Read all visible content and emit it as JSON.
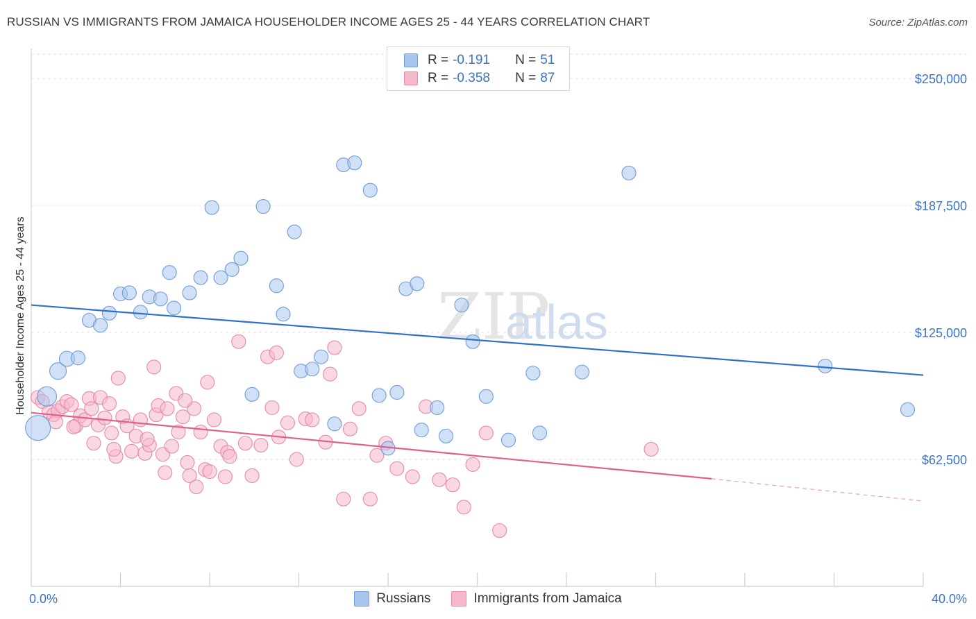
{
  "title": "RUSSIAN VS IMMIGRANTS FROM JAMAICA HOUSEHOLDER INCOME AGES 25 - 44 YEARS CORRELATION CHART",
  "source": "Source: ZipAtlas.com",
  "watermark": {
    "zip": "ZIP",
    "atlas": "atlas"
  },
  "legend": {
    "rows": [
      {
        "r_label": "R =",
        "r_value": "-0.191",
        "n_label": "N =",
        "n_value": "51"
      },
      {
        "r_label": "R =",
        "r_value": "-0.358",
        "n_label": "N =",
        "n_value": "87"
      }
    ]
  },
  "chart_data": {
    "type": "scatter",
    "ylabel": "Householder Income Ages 25 - 44 years",
    "xlim": [
      0,
      40
    ],
    "ylim": [
      0,
      262000
    ],
    "x_tick_labels": [
      "0.0%",
      "40.0%"
    ],
    "y_ticks": [
      {
        "value": 62500,
        "label": "$62,500"
      },
      {
        "value": 125000,
        "label": "$125,000"
      },
      {
        "value": 187500,
        "label": "$187,500"
      },
      {
        "value": 250000,
        "label": "$250,000"
      }
    ],
    "colors": {
      "russians_fill": "#a9c6ee",
      "russians_stroke": "#6f9bd8",
      "russians_line": "#2e6fcc",
      "jamaica_fill": "#f5b8cc",
      "jamaica_stroke": "#e58aa8",
      "jamaica_line": "#e0608c"
    },
    "series": [
      {
        "name": "Russians",
        "trend": {
          "x0": 0,
          "y0": 138500,
          "x1": 40,
          "y1": 104000
        },
        "points": [
          [
            0.3,
            78000,
            1.8
          ],
          [
            0.7,
            93500,
            1.4
          ],
          [
            1.2,
            106000,
            1.2
          ],
          [
            1.6,
            112000,
            1.1
          ],
          [
            2.1,
            112500,
            1.0
          ],
          [
            2.6,
            131000,
            1.0
          ],
          [
            3.1,
            128500,
            1.0
          ],
          [
            3.5,
            134500,
            1.0
          ],
          [
            4.0,
            144000,
            1.0
          ],
          [
            4.4,
            144500,
            1.0
          ],
          [
            4.9,
            135000,
            1.0
          ],
          [
            5.3,
            142500,
            1.0
          ],
          [
            5.8,
            141500,
            1.0
          ],
          [
            6.2,
            154500,
            1.0
          ],
          [
            6.4,
            137000,
            1.0
          ],
          [
            7.1,
            144500,
            1.0
          ],
          [
            7.6,
            152000,
            1.0
          ],
          [
            8.1,
            186500,
            1.0
          ],
          [
            8.5,
            152000,
            1.0
          ],
          [
            9.0,
            156000,
            1.0
          ],
          [
            9.4,
            161500,
            1.0
          ],
          [
            9.9,
            94500,
            1.0
          ],
          [
            10.4,
            187000,
            1.0
          ],
          [
            11.0,
            148000,
            1.0
          ],
          [
            11.3,
            134000,
            1.0
          ],
          [
            11.8,
            174500,
            1.0
          ],
          [
            12.1,
            106000,
            1.0
          ],
          [
            12.6,
            107000,
            1.0
          ],
          [
            13.0,
            113000,
            1.0
          ],
          [
            13.6,
            80000,
            1.0
          ],
          [
            14.0,
            207500,
            1.0
          ],
          [
            14.5,
            208500,
            1.0
          ],
          [
            15.2,
            195000,
            1.0
          ],
          [
            15.6,
            94000,
            1.0
          ],
          [
            16.0,
            68000,
            1.0
          ],
          [
            16.4,
            95500,
            1.0
          ],
          [
            16.8,
            146500,
            1.0
          ],
          [
            17.3,
            149000,
            1.0
          ],
          [
            17.5,
            77000,
            1.0
          ],
          [
            18.2,
            88000,
            1.0
          ],
          [
            18.6,
            74000,
            1.0
          ],
          [
            19.3,
            138500,
            1.0
          ],
          [
            19.8,
            120500,
            1.0
          ],
          [
            20.4,
            93500,
            1.0
          ],
          [
            21.4,
            72000,
            1.0
          ],
          [
            22.5,
            105000,
            1.0
          ],
          [
            22.8,
            75500,
            1.0
          ],
          [
            24.7,
            105500,
            1.0
          ],
          [
            26.8,
            203500,
            1.0
          ],
          [
            35.6,
            108500,
            1.0
          ],
          [
            39.3,
            87000,
            1.0
          ]
        ]
      },
      {
        "name": "Immigrants from Jamaica",
        "trend": {
          "x0": 0,
          "y0": 85500,
          "x1": 30.5,
          "y1": 53000,
          "dash_x1": 40,
          "dash_y1": 42000
        },
        "points": [
          [
            0.3,
            93000,
            1.0
          ],
          [
            0.5,
            91000,
            1.0
          ],
          [
            0.8,
            86000,
            1.0
          ],
          [
            1.0,
            84500,
            1.0
          ],
          [
            1.2,
            86500,
            1.0
          ],
          [
            1.4,
            88500,
            1.0
          ],
          [
            1.6,
            91000,
            1.0
          ],
          [
            1.8,
            89500,
            1.0
          ],
          [
            2.0,
            79000,
            1.0
          ],
          [
            2.2,
            84000,
            1.0
          ],
          [
            2.4,
            82000,
            1.0
          ],
          [
            2.6,
            92500,
            1.0
          ],
          [
            2.7,
            87500,
            1.0
          ],
          [
            3.0,
            79500,
            1.0
          ],
          [
            3.1,
            93000,
            1.0
          ],
          [
            3.3,
            83000,
            1.0
          ],
          [
            3.5,
            90000,
            1.0
          ],
          [
            3.6,
            75500,
            1.0
          ],
          [
            3.8,
            64000,
            1.0
          ],
          [
            3.9,
            102500,
            1.0
          ],
          [
            4.1,
            83500,
            1.0
          ],
          [
            4.3,
            79000,
            1.0
          ],
          [
            4.5,
            66500,
            1.0
          ],
          [
            4.7,
            74000,
            1.0
          ],
          [
            4.9,
            82000,
            1.0
          ],
          [
            5.1,
            65500,
            1.0
          ],
          [
            5.3,
            69500,
            1.0
          ],
          [
            5.5,
            108000,
            1.0
          ],
          [
            5.6,
            84500,
            1.0
          ],
          [
            5.7,
            89000,
            1.0
          ],
          [
            5.9,
            65000,
            1.0
          ],
          [
            6.0,
            56000,
            1.0
          ],
          [
            6.1,
            87500,
            1.0
          ],
          [
            6.3,
            69000,
            1.0
          ],
          [
            6.5,
            95000,
            1.0
          ],
          [
            6.6,
            76000,
            1.0
          ],
          [
            6.8,
            83500,
            1.0
          ],
          [
            7.0,
            61000,
            1.0
          ],
          [
            7.1,
            54500,
            1.0
          ],
          [
            7.3,
            87500,
            1.0
          ],
          [
            7.4,
            49000,
            1.0
          ],
          [
            7.6,
            76000,
            1.0
          ],
          [
            7.8,
            57500,
            1.0
          ],
          [
            7.9,
            100500,
            1.0
          ],
          [
            8.0,
            56500,
            1.0
          ],
          [
            8.2,
            82000,
            1.0
          ],
          [
            8.5,
            69000,
            1.0
          ],
          [
            8.7,
            54000,
            1.0
          ],
          [
            8.8,
            66000,
            1.0
          ],
          [
            8.9,
            64000,
            1.0
          ],
          [
            9.3,
            120500,
            1.0
          ],
          [
            9.6,
            70500,
            1.0
          ],
          [
            9.9,
            54500,
            1.0
          ],
          [
            10.3,
            69500,
            1.0
          ],
          [
            10.6,
            113000,
            1.0
          ],
          [
            10.8,
            88000,
            1.0
          ],
          [
            11.0,
            115000,
            1.0
          ],
          [
            11.1,
            73500,
            1.0
          ],
          [
            11.5,
            80500,
            1.0
          ],
          [
            11.9,
            62500,
            1.0
          ],
          [
            12.3,
            82500,
            1.0
          ],
          [
            12.6,
            82000,
            1.0
          ],
          [
            13.2,
            71000,
            1.0
          ],
          [
            13.4,
            104500,
            1.0
          ],
          [
            13.6,
            117500,
            1.0
          ],
          [
            14.0,
            43000,
            1.0
          ],
          [
            14.3,
            77500,
            1.0
          ],
          [
            14.7,
            87500,
            1.0
          ],
          [
            15.2,
            43000,
            1.0
          ],
          [
            15.5,
            64500,
            1.0
          ],
          [
            15.9,
            70500,
            1.0
          ],
          [
            16.4,
            58000,
            1.0
          ],
          [
            17.1,
            54000,
            1.0
          ],
          [
            17.7,
            88500,
            1.0
          ],
          [
            18.3,
            52500,
            1.0
          ],
          [
            18.9,
            50000,
            1.0
          ],
          [
            19.4,
            39000,
            1.0
          ],
          [
            19.8,
            60000,
            1.0
          ],
          [
            20.4,
            75500,
            1.0
          ],
          [
            21.0,
            27500,
            1.0
          ],
          [
            27.8,
            67500,
            1.0
          ],
          [
            1.9,
            78500,
            1.0
          ],
          [
            3.7,
            67500,
            1.0
          ],
          [
            6.9,
            91500,
            1.0
          ],
          [
            2.8,
            70500,
            1.0
          ],
          [
            5.2,
            72500,
            1.0
          ],
          [
            1.1,
            81000,
            1.0
          ]
        ]
      }
    ]
  }
}
